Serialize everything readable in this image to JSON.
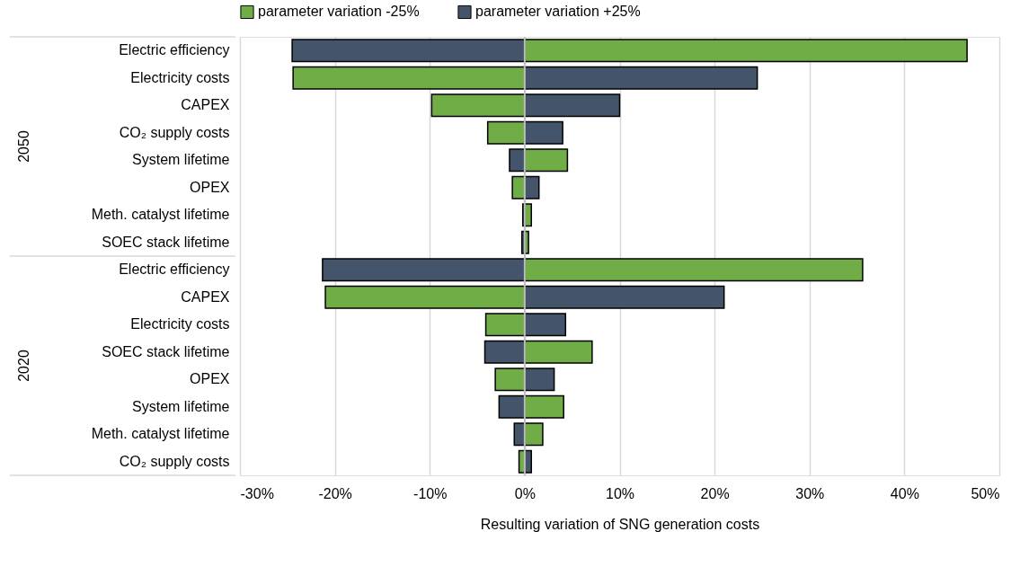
{
  "chart_data": {
    "type": "bar",
    "orientation": "horizontal",
    "stacked": true,
    "categories": [
      "Electric efficiency",
      "Electricity costs",
      "CAPEX",
      "CO₂ supply costs",
      "System lifetime",
      "OPEX",
      "Meth. catalyst lifetime",
      "SOEC stack lifetime",
      "Electric efficiency",
      "CAPEX",
      "Electricity costs",
      "SOEC stack lifetime",
      "OPEX",
      "System lifetime",
      "Meth. catalyst lifetime",
      "CO₂ supply costs"
    ],
    "series": [
      {
        "name": "parameter variation -25%",
        "color": "#70ad47",
        "values": [
          46.6,
          -24.4,
          -9.8,
          -3.9,
          4.5,
          -1.3,
          0.7,
          0.4,
          35.6,
          -21.0,
          -4.1,
          7.1,
          -3.1,
          4.1,
          1.9,
          -0.6
        ]
      },
      {
        "name": "parameter variation +25%",
        "color": "#44546a",
        "values": [
          -24.5,
          24.5,
          10.0,
          4.0,
          -1.6,
          1.5,
          -0.2,
          -0.3,
          -21.3,
          21.0,
          4.3,
          -4.2,
          3.1,
          -2.7,
          -1.1,
          0.7
        ]
      }
    ],
    "xlabel": "Resulting variation of SNG generation costs",
    "annotations": [
      "2050",
      "2020"
    ],
    "xlim": [
      -30,
      50
    ],
    "xticks": [
      {
        "value": -30,
        "label": "-30%"
      },
      {
        "value": -20,
        "label": "-20%"
      },
      {
        "value": -10,
        "label": "-10%"
      },
      {
        "value": 0,
        "label": "0%"
      },
      {
        "value": 10,
        "label": "10%"
      },
      {
        "value": 20,
        "label": "20%"
      },
      {
        "value": 30,
        "label": "30%"
      },
      {
        "value": 40,
        "label": "40%"
      },
      {
        "value": 50,
        "label": "50%"
      }
    ],
    "grid": "x",
    "legend": "top"
  }
}
